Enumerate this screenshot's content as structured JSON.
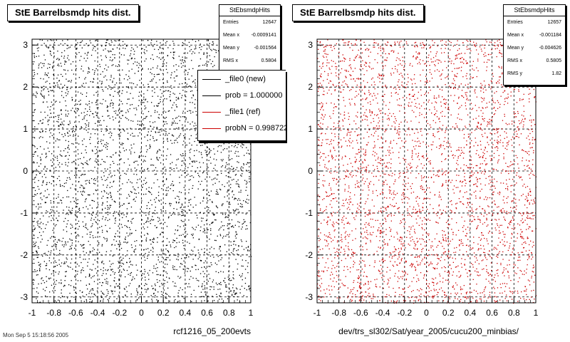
{
  "chart_data": [
    {
      "type": "scatter",
      "title": "StE Barrelbsmdp hits dist.",
      "xlabel": "rcf1216_05_200evts",
      "ylabel": "",
      "xlim": [
        -1,
        1
      ],
      "ylim": [
        -3.14,
        3.14
      ],
      "x_ticks": [
        "-1",
        "-0.8",
        "-0.6",
        "-0.4",
        "-0.2",
        "0",
        "0.2",
        "0.4",
        "0.6",
        "0.8",
        "1"
      ],
      "y_ticks": [
        "-3",
        "-2",
        "-1",
        "0",
        "1",
        "2",
        "3"
      ],
      "grid": true,
      "marker_color": "#000000",
      "distribution": "uniform",
      "stats": {
        "name": "StEbsmdpHits",
        "rows": [
          {
            "label": "Entries",
            "value": "12647"
          },
          {
            "label": "Mean x",
            "value": "-0.0009141"
          },
          {
            "label": "Mean y",
            "value": "-0.001564"
          },
          {
            "label": "RMS x",
            "value": "0.5804"
          }
        ]
      },
      "legend": {
        "placement": "top-right",
        "entries": [
          {
            "label": "_file0 (new)",
            "color": "#000000"
          },
          {
            "label": "prob = 1.000000",
            "color": "#000000"
          },
          {
            "label": "_file1 (ref)",
            "color": "#cc0000"
          },
          {
            "label": "probN = 0.998722",
            "color": "#cc0000"
          }
        ]
      }
    },
    {
      "type": "scatter",
      "title": "StE Barrelbsmdp hits dist.",
      "xlabel": "dev/trs_sl302/Sat/year_2005/cucu200_minbias/",
      "ylabel": "",
      "xlim": [
        -1,
        1
      ],
      "ylim": [
        -3.14,
        3.14
      ],
      "x_ticks": [
        "-1",
        "-0.8",
        "-0.6",
        "-0.4",
        "-0.2",
        "0",
        "0.2",
        "0.4",
        "0.6",
        "0.8",
        "1"
      ],
      "y_ticks": [
        "-3",
        "-2",
        "-1",
        "0",
        "1",
        "2",
        "3"
      ],
      "grid": true,
      "marker_color": "#cc0000",
      "distribution": "uniform",
      "stats": {
        "name": "StEbsmdpHits",
        "rows": [
          {
            "label": "Entries",
            "value": "12657"
          },
          {
            "label": "Mean x",
            "value": "-0.001184"
          },
          {
            "label": "Mean y",
            "value": "-0.004626"
          },
          {
            "label": "RMS x",
            "value": "0.5805"
          },
          {
            "label": "RMS y",
            "value": "1.82"
          }
        ]
      }
    }
  ],
  "footer_text": "Mon Sep 5 15:18:56 2005"
}
